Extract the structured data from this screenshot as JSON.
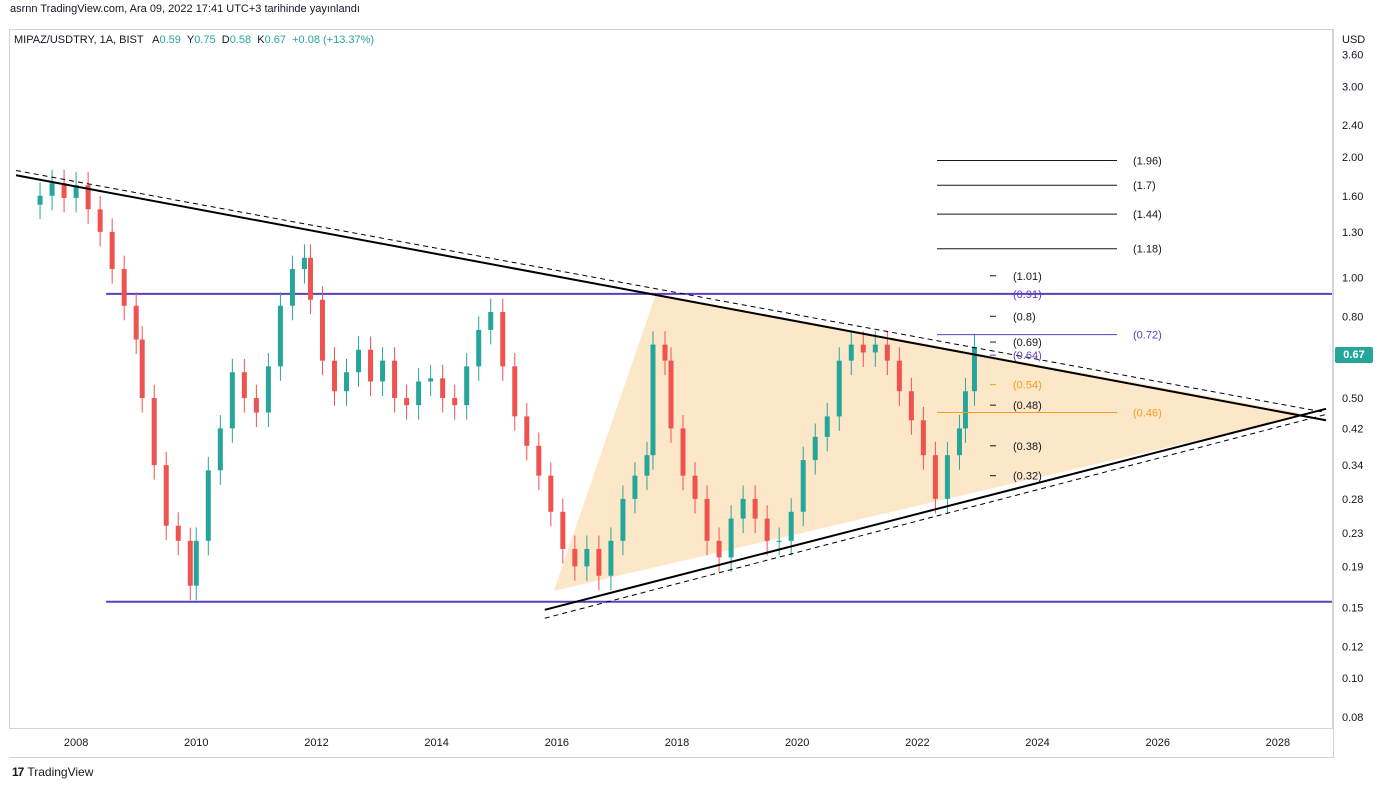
{
  "header": {
    "attribution": "asrnn TradingView.com, Ara 09, 2022 17:41 UTC+3 tarihinde yayınlandı"
  },
  "legend": {
    "symbol": "MIPAZ/USDTRY, 1A, BIST",
    "o_label": "A",
    "o_value": "0.59",
    "h_label": "Y",
    "h_value": "0.75",
    "l_label": "D",
    "l_value": "0.58",
    "c_label": "K",
    "c_value": "0.67",
    "change": "+0.08 (+13.37%)"
  },
  "price_axis": {
    "currency": "USD",
    "last_price": "0.67"
  },
  "footer": {
    "brand": "TradingView",
    "logo": "17"
  },
  "colors": {
    "up": "#26a69a",
    "down": "#ef5350",
    "support_resistance": "#5b3fbf",
    "triangle_fill": "#fde3c0",
    "orange_level": "#f59d1c",
    "trendline": "#000000"
  },
  "chart_data": {
    "type": "candlestick",
    "scale": "log",
    "xlim": [
      2006.9,
      2028.9
    ],
    "ylim": [
      0.075,
      4.15
    ],
    "x_ticks": [
      "2008",
      "2010",
      "2012",
      "2014",
      "2016",
      "2018",
      "2020",
      "2022",
      "2024",
      "2026",
      "2028"
    ],
    "y_ticks": [
      "3.60",
      "3.00",
      "2.40",
      "2.00",
      "1.60",
      "1.30",
      "1.00",
      "0.80",
      "0.50",
      "0.42",
      "0.34",
      "0.28",
      "0.23",
      "0.19",
      "0.15",
      "0.12",
      "0.10",
      "0.08"
    ],
    "horizontal_levels": [
      {
        "name": "resistance",
        "value": 0.91,
        "x_from": 2008.5
      },
      {
        "name": "support",
        "value": 0.155,
        "x_from": 2008.5
      }
    ],
    "trendlines": [
      {
        "name": "upper-solid",
        "p1": [
          2007.0,
          1.8
        ],
        "p2": [
          2028.8,
          0.44
        ],
        "style": "solid"
      },
      {
        "name": "upper-dashed",
        "p1": [
          2007.0,
          1.85
        ],
        "p2": [
          2028.8,
          0.46
        ],
        "style": "dashed"
      },
      {
        "name": "lower-solid",
        "p1": [
          2015.8,
          0.148
        ],
        "p2": [
          2028.8,
          0.47
        ],
        "style": "solid"
      },
      {
        "name": "lower-dashed",
        "p1": [
          2015.8,
          0.141
        ],
        "p2": [
          2028.8,
          0.455
        ],
        "style": "dashed"
      }
    ],
    "triangle": [
      [
        2015.95,
        0.165
      ],
      [
        2017.65,
        0.91
      ],
      [
        2028.5,
        0.455
      ]
    ],
    "fib_levels_left": [
      {
        "label": "(1.01)",
        "value": 1.01,
        "color": "#131722"
      },
      {
        "label": "(0.91)",
        "value": 0.91,
        "color": "#5b3fbf"
      },
      {
        "label": "(0.8)",
        "value": 0.8,
        "color": "#131722"
      },
      {
        "label": "(0.69)",
        "value": 0.69,
        "color": "#131722"
      },
      {
        "label": "(0.64)",
        "value": 0.64,
        "color": "#5b3fbf"
      },
      {
        "label": "(0.54)",
        "value": 0.54,
        "color": "#f59d1c"
      },
      {
        "label": "(0.48)",
        "value": 0.48,
        "color": "#131722"
      },
      {
        "label": "(0.38)",
        "value": 0.38,
        "color": "#131722"
      },
      {
        "label": "(0.32)",
        "value": 0.32,
        "color": "#131722"
      }
    ],
    "fib_levels_right": [
      {
        "label": "(1.96)",
        "value": 1.96,
        "color": "#131722"
      },
      {
        "label": "(1.7)",
        "value": 1.7,
        "color": "#131722"
      },
      {
        "label": "(1.44)",
        "value": 1.44,
        "color": "#131722"
      },
      {
        "label": "(1.18)",
        "value": 1.18,
        "color": "#131722"
      },
      {
        "label": "(0.72)",
        "value": 0.72,
        "color": "#5b3fbf"
      },
      {
        "label": "(0.46)",
        "value": 0.46,
        "color": "#f59d1c"
      }
    ],
    "candles_monthly_close": [
      [
        2007.4,
        1.6
      ],
      [
        2007.6,
        1.72
      ],
      [
        2007.8,
        1.58
      ],
      [
        2008.0,
        1.7
      ],
      [
        2008.2,
        1.48
      ],
      [
        2008.4,
        1.3
      ],
      [
        2008.6,
        1.05
      ],
      [
        2008.8,
        0.85
      ],
      [
        2009.0,
        0.7
      ],
      [
        2009.1,
        0.5
      ],
      [
        2009.3,
        0.34
      ],
      [
        2009.5,
        0.24
      ],
      [
        2009.7,
        0.22
      ],
      [
        2009.9,
        0.17
      ],
      [
        2010.0,
        0.22
      ],
      [
        2010.2,
        0.33
      ],
      [
        2010.4,
        0.42
      ],
      [
        2010.6,
        0.58
      ],
      [
        2010.8,
        0.5
      ],
      [
        2011.0,
        0.46
      ],
      [
        2011.2,
        0.6
      ],
      [
        2011.4,
        0.85
      ],
      [
        2011.6,
        1.05
      ],
      [
        2011.8,
        1.12
      ],
      [
        2011.9,
        0.88
      ],
      [
        2012.1,
        0.62
      ],
      [
        2012.3,
        0.52
      ],
      [
        2012.5,
        0.58
      ],
      [
        2012.7,
        0.66
      ],
      [
        2012.9,
        0.55
      ],
      [
        2013.1,
        0.62
      ],
      [
        2013.3,
        0.5
      ],
      [
        2013.5,
        0.48
      ],
      [
        2013.7,
        0.55
      ],
      [
        2013.9,
        0.56
      ],
      [
        2014.1,
        0.5
      ],
      [
        2014.3,
        0.48
      ],
      [
        2014.5,
        0.6
      ],
      [
        2014.7,
        0.74
      ],
      [
        2014.9,
        0.82
      ],
      [
        2015.1,
        0.6
      ],
      [
        2015.3,
        0.45
      ],
      [
        2015.5,
        0.38
      ],
      [
        2015.7,
        0.32
      ],
      [
        2015.9,
        0.26
      ],
      [
        2016.1,
        0.21
      ],
      [
        2016.3,
        0.19
      ],
      [
        2016.5,
        0.21
      ],
      [
        2016.7,
        0.18
      ],
      [
        2016.9,
        0.22
      ],
      [
        2017.1,
        0.28
      ],
      [
        2017.3,
        0.32
      ],
      [
        2017.5,
        0.36
      ],
      [
        2017.6,
        0.68
      ],
      [
        2017.8,
        0.62
      ],
      [
        2017.9,
        0.42
      ],
      [
        2018.1,
        0.32
      ],
      [
        2018.3,
        0.28
      ],
      [
        2018.5,
        0.22
      ],
      [
        2018.7,
        0.2
      ],
      [
        2018.9,
        0.25
      ],
      [
        2019.1,
        0.28
      ],
      [
        2019.3,
        0.25
      ],
      [
        2019.5,
        0.22
      ],
      [
        2019.7,
        0.22
      ],
      [
        2019.9,
        0.26
      ],
      [
        2020.1,
        0.35
      ],
      [
        2020.3,
        0.4
      ],
      [
        2020.5,
        0.45
      ],
      [
        2020.7,
        0.62
      ],
      [
        2020.9,
        0.68
      ],
      [
        2021.1,
        0.65
      ],
      [
        2021.3,
        0.68
      ],
      [
        2021.5,
        0.62
      ],
      [
        2021.7,
        0.52
      ],
      [
        2021.9,
        0.44
      ],
      [
        2022.1,
        0.36
      ],
      [
        2022.3,
        0.28
      ],
      [
        2022.5,
        0.36
      ],
      [
        2022.7,
        0.42
      ],
      [
        2022.8,
        0.52
      ],
      [
        2022.95,
        0.67
      ]
    ]
  }
}
